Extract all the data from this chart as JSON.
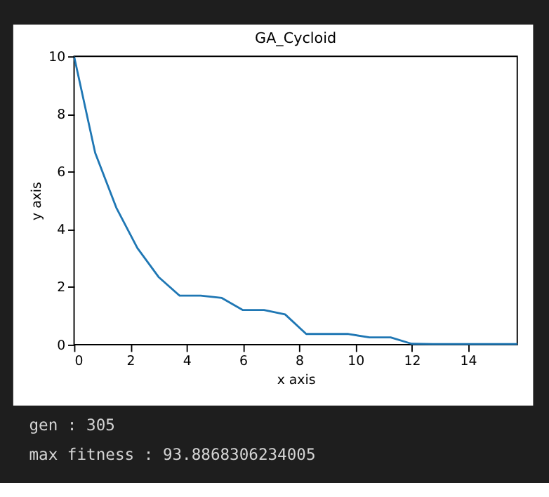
{
  "chart_data": {
    "type": "line",
    "title": "GA_Cycloid",
    "xlabel": "x axis",
    "ylabel": "y axis",
    "x": [
      0,
      0.75,
      1.5,
      2.25,
      3,
      3.75,
      4.5,
      5.25,
      6,
      6.75,
      7.5,
      8.25,
      9,
      9.75,
      10.5,
      11.25,
      12,
      12.75,
      13.5,
      14.25,
      15,
      15.75
    ],
    "series": [
      {
        "color": "#1f77b4",
        "values": [
          10,
          6.65,
          4.75,
          3.35,
          2.35,
          1.7,
          1.7,
          1.62,
          1.2,
          1.2,
          1.05,
          0.37,
          0.37,
          0.37,
          0.25,
          0.25,
          0.03,
          0.02,
          0.02,
          0.02,
          0.02,
          0.02
        ]
      }
    ],
    "xlim": [
      0,
      15.75
    ],
    "ylim": [
      0,
      10
    ],
    "xticks": [
      0,
      2,
      4,
      6,
      8,
      10,
      12,
      14
    ],
    "yticks": [
      0,
      2,
      4,
      6,
      8,
      10
    ],
    "grid": false,
    "marker": "none",
    "line_style": "solid",
    "annotations": [
      "gen : 305",
      "max fitness : 93.8868306234005"
    ]
  }
}
